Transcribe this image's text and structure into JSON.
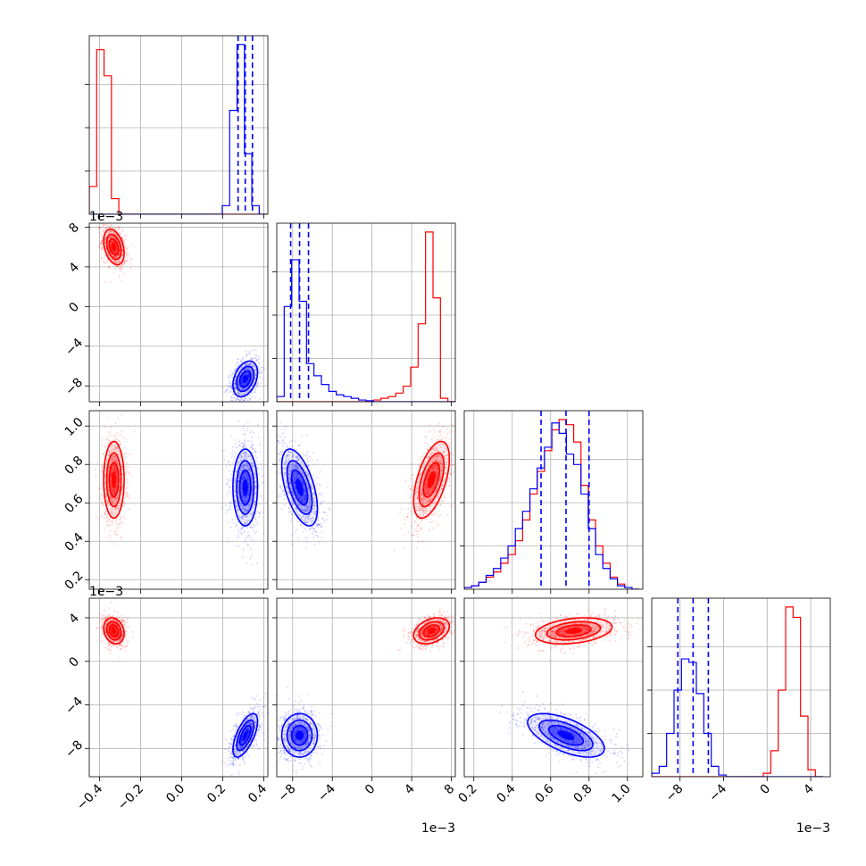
{
  "chart_data": {
    "type": "corner",
    "variables": [
      {
        "range": [
          -0.45,
          0.42
        ],
        "ticks": [
          -0.4,
          -0.2,
          0.0,
          0.2,
          0.4
        ],
        "tick_labels": [
          "−0.4",
          "−0.2",
          "0.0",
          "0.2",
          "0.4"
        ],
        "offset": ""
      },
      {
        "range": [
          -9.6,
          8.4
        ],
        "ticks": [
          -8,
          -4,
          0,
          4,
          8
        ],
        "tick_labels": [
          "−8",
          "−4",
          "0",
          "4",
          "8"
        ],
        "offset": "1e−3"
      },
      {
        "range": [
          0.15,
          1.08
        ],
        "ticks": [
          0.2,
          0.4,
          0.6,
          0.8,
          1.0
        ],
        "tick_labels": [
          "0.2",
          "0.4",
          "0.6",
          "0.8",
          "1.0"
        ],
        "offset": ""
      },
      {
        "range": [
          -10.6,
          5.8
        ],
        "ticks": [
          -8,
          -4,
          0,
          4
        ],
        "tick_labels": [
          "−8",
          "−4",
          "0",
          "4"
        ],
        "offset": "1e−3"
      }
    ],
    "series": [
      {
        "color": "#ff0000",
        "means": [
          -0.33,
          6.0,
          0.72,
          2.8
        ],
        "sds": [
          0.025,
          0.9,
          0.1,
          0.6
        ],
        "corr": {
          "1-0": -0.35,
          "2-0": 0.0,
          "2-1": 0.55,
          "3-0": -0.2,
          "3-1": 0.35,
          "3-2": 0.3
        }
      },
      {
        "color": "#0000ff",
        "means": [
          0.31,
          -7.3,
          0.68,
          -6.8
        ],
        "sds": [
          0.03,
          0.9,
          0.1,
          1.0
        ],
        "corr": {
          "1-0": 0.35,
          "2-0": 0.0,
          "2-1": -0.55,
          "3-0": 0.65,
          "3-1": 0.0,
          "3-2": -0.6
        }
      }
    ],
    "histograms": [
      {
        "bin_edges": [
          -0.45,
          -0.414,
          -0.378,
          -0.342,
          -0.306,
          -0.27,
          -0.234,
          -0.198,
          -0.162,
          -0.126,
          -0.09,
          -0.054,
          -0.018,
          0.018,
          0.054,
          0.09,
          0.126,
          0.162,
          0.198,
          0.234,
          0.27,
          0.306,
          0.342,
          0.378,
          0.414
        ],
        "red": [
          0.16,
          0.95,
          0.8,
          0.09,
          0,
          0,
          0,
          0,
          0,
          0,
          0,
          0,
          0,
          0,
          0,
          0,
          0,
          0,
          0,
          0,
          0,
          0,
          0,
          0
        ],
        "blue": [
          0,
          0,
          0,
          0,
          0,
          0,
          0,
          0,
          0,
          0,
          0,
          0,
          0,
          0,
          0,
          0,
          0,
          0,
          0.05,
          0.6,
          0.98,
          0.35,
          0.05,
          0
        ],
        "quantiles": [
          0.275,
          0.31,
          0.345
        ]
      },
      {
        "bin_edges": [
          -9.6,
          -8.85,
          -8.1,
          -7.35,
          -6.6,
          -5.85,
          -5.1,
          -4.35,
          -3.6,
          -2.85,
          -2.1,
          -1.35,
          -0.6,
          0.15,
          0.9,
          1.65,
          2.4,
          3.15,
          3.9,
          4.65,
          5.4,
          6.15,
          6.9,
          7.65,
          8.4
        ],
        "red": [
          0,
          0,
          0,
          0,
          0,
          0,
          0,
          0,
          0,
          0,
          0,
          0,
          0.005,
          0.01,
          0.02,
          0.03,
          0.05,
          0.09,
          0.2,
          0.45,
          0.98,
          0.6,
          0.02,
          0
        ],
        "blue": [
          0.03,
          0.55,
          0.82,
          0.58,
          0.22,
          0.15,
          0.1,
          0.06,
          0.04,
          0.03,
          0.02,
          0.01,
          0.005,
          0,
          0,
          0,
          0,
          0,
          0,
          0,
          0,
          0,
          0,
          0
        ],
        "quantiles": [
          -8.2,
          -7.3,
          -6.4
        ]
      },
      {
        "bin_edges": [
          0.15,
          0.188,
          0.226,
          0.264,
          0.302,
          0.34,
          0.378,
          0.416,
          0.454,
          0.492,
          0.53,
          0.568,
          0.606,
          0.644,
          0.682,
          0.72,
          0.758,
          0.796,
          0.834,
          0.872,
          0.91,
          0.948,
          0.986,
          1.024,
          1.062
        ],
        "red": [
          0.01,
          0.02,
          0.04,
          0.07,
          0.1,
          0.15,
          0.2,
          0.28,
          0.4,
          0.55,
          0.68,
          0.8,
          0.92,
          0.98,
          0.95,
          0.85,
          0.6,
          0.4,
          0.25,
          0.15,
          0.07,
          0.03,
          0.01,
          0
        ],
        "blue": [
          0.01,
          0.02,
          0.04,
          0.08,
          0.12,
          0.18,
          0.25,
          0.35,
          0.45,
          0.58,
          0.7,
          0.82,
          0.96,
          0.9,
          0.78,
          0.72,
          0.55,
          0.35,
          0.2,
          0.12,
          0.06,
          0.02,
          0.01,
          0
        ],
        "quantiles": [
          0.55,
          0.68,
          0.8
        ]
      },
      {
        "bin_edges": [
          -10.6,
          -9.917,
          -9.233,
          -8.55,
          -7.867,
          -7.183,
          -6.5,
          -5.817,
          -5.133,
          -4.45,
          -3.767,
          -3.083,
          -2.4,
          -1.717,
          -1.033,
          -0.35,
          0.333,
          1.017,
          1.7,
          2.383,
          3.067,
          3.75,
          4.433,
          5.117
        ],
        "red": [
          0,
          0,
          0,
          0,
          0,
          0,
          0,
          0,
          0,
          0,
          0,
          0,
          0,
          0,
          0,
          0.02,
          0.15,
          0.5,
          0.98,
          0.92,
          0.35,
          0.04,
          0
        ],
        "blue": [
          0.02,
          0.06,
          0.25,
          0.5,
          0.68,
          0.66,
          0.48,
          0.25,
          0.06,
          0.01,
          0,
          0,
          0,
          0,
          0,
          0,
          0,
          0,
          0,
          0,
          0,
          0,
          0
        ],
        "quantiles": [
          -8.2,
          -6.8,
          -5.4
        ]
      }
    ]
  }
}
